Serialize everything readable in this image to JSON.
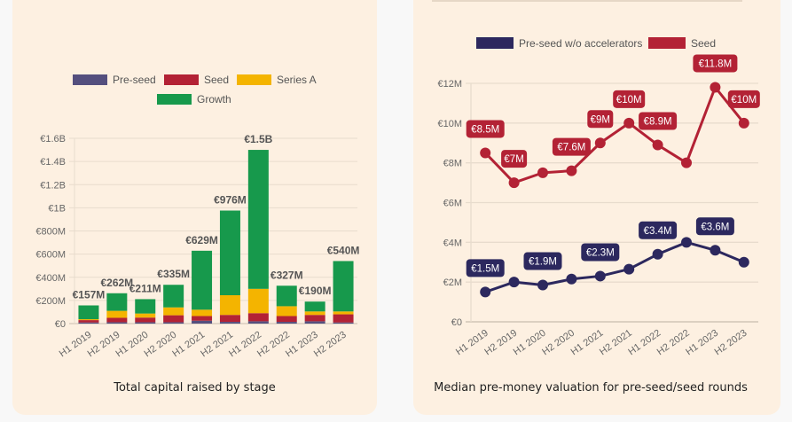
{
  "colors": {
    "preseed": "#544f7e",
    "seed": "#b32235",
    "series_a": "#f4b400",
    "growth": "#17994c",
    "preseed_line": "#2c285e",
    "seed_line": "#b32235",
    "grid": "#e8dccd",
    "card": "#fdf0e1"
  },
  "chart_data": [
    {
      "type": "bar",
      "stacked": true,
      "title": "Total capital raised by stage",
      "xlabel": "",
      "ylabel": "",
      "categories": [
        "H1 2019",
        "H2 2019",
        "H1 2020",
        "H2 2020",
        "H1 2021",
        "H2 2021",
        "H1 2022",
        "H2 2022",
        "H1 2023",
        "H2 2023"
      ],
      "series": [
        {
          "name": "Pre-seed",
          "key": "preseed",
          "values": [
            10,
            12,
            12,
            12,
            25,
            15,
            20,
            15,
            20,
            10
          ]
        },
        {
          "name": "Seed",
          "key": "seed",
          "values": [
            20,
            38,
            40,
            60,
            40,
            60,
            70,
            50,
            55,
            70
          ]
        },
        {
          "name": "Series A",
          "key": "series_a",
          "values": [
            8,
            60,
            35,
            68,
            55,
            170,
            210,
            85,
            30,
            25
          ]
        },
        {
          "name": "Growth",
          "key": "growth",
          "values": [
            119,
            152,
            124,
            195,
            509,
            731,
            1200,
            177,
            85,
            435
          ]
        }
      ],
      "totals_labels": [
        "€157M",
        "€262M",
        "€211M",
        "€335M",
        "€629M",
        "€976M",
        "€1.5B",
        "€327M",
        "€190M",
        "€540M"
      ],
      "totals": [
        157,
        262,
        211,
        335,
        629,
        976,
        1500,
        327,
        190,
        540
      ],
      "ylim": [
        0,
        1600
      ],
      "yticks": [
        0,
        200,
        400,
        600,
        800,
        1000,
        1200,
        1400,
        1600
      ],
      "ytick_labels": [
        "€0",
        "€200M",
        "€400M",
        "€600M",
        "€800M",
        "€1B",
        "€1.2B",
        "€1.4B",
        "€1.6B"
      ],
      "grid": true,
      "legend": "top-center",
      "legend_entries": [
        "Pre-seed",
        "Seed",
        "Series A",
        "Growth"
      ]
    },
    {
      "type": "line",
      "title": "Median pre-money valuation for pre-seed/seed rounds",
      "xlabel": "",
      "ylabel": "",
      "categories": [
        "H1 2019",
        "H2 2019",
        "H1 2020",
        "H2 2020",
        "H1 2021",
        "H2 2021",
        "H1 2022",
        "H2 2022",
        "H1 2023",
        "H2 2023"
      ],
      "series": [
        {
          "name": "Pre-seed w/o accelerators",
          "key": "preseed_line",
          "values": [
            1.5,
            2.0,
            1.85,
            2.15,
            2.3,
            2.65,
            3.4,
            4.0,
            3.6,
            3.0
          ],
          "labels": [
            "€1.5M",
            null,
            "€1.9M",
            null,
            "€2.3M",
            null,
            "€3.4M",
            null,
            "€3.6M",
            null
          ]
        },
        {
          "name": "Seed",
          "key": "seed_line",
          "values": [
            8.5,
            7.0,
            7.5,
            7.6,
            9.0,
            10.0,
            8.9,
            8.0,
            11.8,
            10.0
          ],
          "labels": [
            "€8.5M",
            "€7M",
            null,
            "€7.6M",
            "€9M",
            "€10M",
            "€8.9M",
            null,
            "€11.8M",
            "€10M"
          ]
        }
      ],
      "ylim": [
        0,
        12
      ],
      "yticks": [
        0,
        2,
        4,
        6,
        8,
        10,
        12
      ],
      "ytick_labels": [
        "€0",
        "€2M",
        "€4M",
        "€6M",
        "€8M",
        "€10M",
        "€12M"
      ],
      "grid": true,
      "legend": "top-center",
      "legend_entries": [
        "Pre-seed w/o accelerators",
        "Seed"
      ]
    }
  ],
  "captions": {
    "left": "Total capital raised by stage",
    "right": "Median pre-money valuation for pre-seed/seed rounds"
  }
}
